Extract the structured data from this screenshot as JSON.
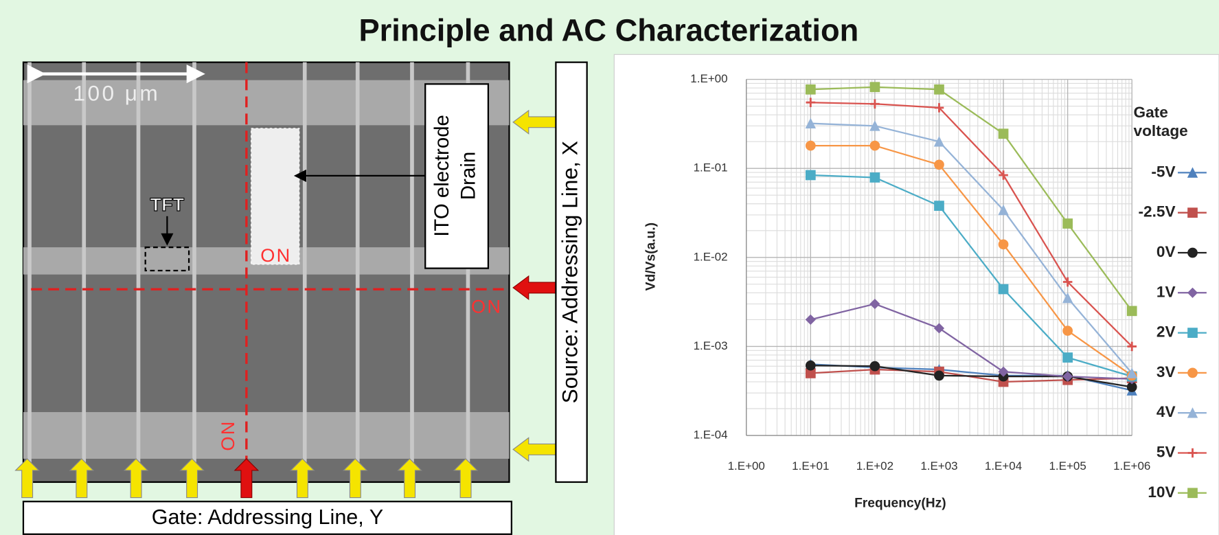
{
  "title": "Principle and AC Characterization",
  "micrograph": {
    "scale_bar": "100 μm",
    "tft_label": "TFT",
    "on_labels": [
      "ON",
      "ON",
      "ON"
    ],
    "ito_label": [
      "ITO electrode",
      "Drain"
    ],
    "source_label": "Source: Addressing Line, X",
    "gate_label": "Gate: Addressing Line, Y"
  },
  "chart_data": {
    "type": "line",
    "x_label": "Frequency(Hz)",
    "y_label": "Vd/Vs(a.u.)",
    "legend_title": "Gate voltage",
    "legend_position": "right",
    "log_x": true,
    "log_y": true,
    "grid": true,
    "x": [
      10,
      100,
      1000,
      10000,
      100000,
      1000000
    ],
    "xlim": [
      1,
      1000000
    ],
    "ylim": [
      0.0001,
      1
    ],
    "xticks": [
      {
        "value": 1,
        "label": "1.E+00"
      },
      {
        "value": 10,
        "label": "1.E+01"
      },
      {
        "value": 100,
        "label": "1.E+02"
      },
      {
        "value": 1000,
        "label": "1.E+03"
      },
      {
        "value": 10000,
        "label": "1.E+04"
      },
      {
        "value": 100000,
        "label": "1.E+05"
      },
      {
        "value": 1000000,
        "label": "1.E+06"
      }
    ],
    "yticks": [
      {
        "value": 0.0001,
        "label": "1.E-04"
      },
      {
        "value": 0.001,
        "label": "1.E-03"
      },
      {
        "value": 0.01,
        "label": "1.E-02"
      },
      {
        "value": 0.1,
        "label": "1.E-01"
      },
      {
        "value": 1,
        "label": "1.E+00"
      }
    ],
    "series": [
      {
        "name": "-5V",
        "color": "#4f81bd",
        "marker": "triangle",
        "values": [
          0.00063,
          0.00058,
          0.00055,
          0.00047,
          0.00047,
          0.00032
        ]
      },
      {
        "name": "-2.5V",
        "color": "#c0504d",
        "marker": "square",
        "values": [
          0.0005,
          0.00055,
          0.00052,
          0.0004,
          0.00042,
          0.00044
        ]
      },
      {
        "name": "0V",
        "color": "#222222",
        "marker": "circle",
        "values": [
          0.00061,
          0.0006,
          0.00047,
          0.00046,
          0.00046,
          0.00035
        ]
      },
      {
        "name": "1V",
        "color": "#8064a2",
        "marker": "diamond",
        "values": [
          0.002,
          0.003,
          0.0016,
          0.00052,
          0.00046,
          0.00043
        ]
      },
      {
        "name": "2V",
        "color": "#4bacc6",
        "marker": "square",
        "values": [
          0.084,
          0.079,
          0.038,
          0.0044,
          0.00075,
          0.00046
        ]
      },
      {
        "name": "3V",
        "color": "#f79646",
        "marker": "circle",
        "values": [
          0.18,
          0.18,
          0.11,
          0.014,
          0.0015,
          0.00047
        ]
      },
      {
        "name": "4V",
        "color": "#95b3d7",
        "marker": "triangle",
        "values": [
          0.32,
          0.3,
          0.2,
          0.034,
          0.0035,
          0.0005
        ]
      },
      {
        "name": "5V",
        "color": "#d9534f",
        "marker": "plus",
        "values": [
          0.55,
          0.53,
          0.48,
          0.084,
          0.0053,
          0.001
        ]
      },
      {
        "name": "10V",
        "color": "#9bbb59",
        "marker": "square",
        "values": [
          0.77,
          0.82,
          0.77,
          0.245,
          0.024,
          0.0025
        ]
      }
    ]
  }
}
